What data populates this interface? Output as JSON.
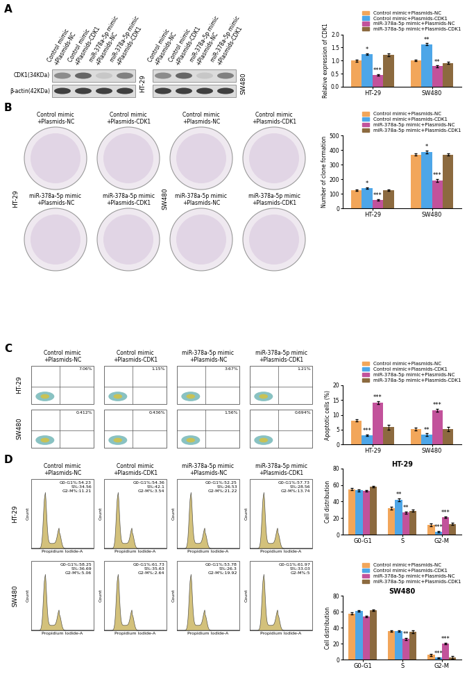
{
  "chart_data": [
    {
      "type": "bar",
      "ylabel": "Relative expression of CDK1",
      "categories": [
        "HT-29",
        "SW480"
      ],
      "series": [
        {
          "name": "Control mimic+Plasmids-NC",
          "color": "#F2A65A",
          "values": [
            1.0,
            1.0
          ],
          "errors": [
            0.04,
            0.03
          ]
        },
        {
          "name": "Control mimic+Plasmids-CDK1",
          "color": "#4DA6E8",
          "values": [
            1.25,
            1.62
          ],
          "errors": [
            0.03,
            0.04
          ],
          "annotations": [
            "*",
            "**"
          ]
        },
        {
          "name": "miR-378a-5p mimic+Plasmids-NC",
          "color": "#C2529B",
          "values": [
            0.45,
            0.78
          ],
          "errors": [
            0.03,
            0.03
          ],
          "annotations": [
            "***",
            "**"
          ]
        },
        {
          "name": "miR-378a-5p mimic+Plasmids-CDK1",
          "color": "#8C6A3F",
          "values": [
            1.22,
            0.9
          ],
          "errors": [
            0.05,
            0.04
          ]
        }
      ],
      "ylim": [
        0,
        2.0
      ],
      "yticks": [
        {
          "value": 0,
          "label": "0.0"
        },
        {
          "value": 0.5,
          "label": "0.5"
        },
        {
          "value": 1.0,
          "label": "1.0"
        },
        {
          "value": 1.5,
          "label": "1.5"
        },
        {
          "value": 2.0,
          "label": "2.0"
        }
      ],
      "legend": "above"
    },
    {
      "type": "bar",
      "ylabel": "Number of clone formation",
      "categories": [
        "HT-29",
        "SW480"
      ],
      "series": [
        {
          "name": "Control mimic+Plasmids-NC",
          "color": "#F2A65A",
          "values": [
            125,
            370
          ],
          "errors": [
            4,
            8
          ]
        },
        {
          "name": "Control mimic+Plasmids-CDK1",
          "color": "#4DA6E8",
          "values": [
            140,
            385
          ],
          "errors": [
            5,
            9
          ],
          "annotations": [
            "*",
            "*"
          ]
        },
        {
          "name": "miR-378a-5p mimic+Plasmids-NC",
          "color": "#C2529B",
          "values": [
            60,
            190
          ],
          "errors": [
            4,
            10
          ],
          "annotations": [
            "***",
            "***"
          ]
        },
        {
          "name": "miR-378a-5p mimic+Plasmids-CDK1",
          "color": "#8C6A3F",
          "values": [
            125,
            370
          ],
          "errors": [
            5,
            8
          ]
        }
      ],
      "ylim": [
        0,
        500
      ],
      "yticks": [
        0,
        100,
        200,
        300,
        400,
        500
      ],
      "legend": "above"
    },
    {
      "type": "bar",
      "ylabel": "Apoptotic cells (%)",
      "categories": [
        "HT-29",
        "SW480"
      ],
      "series": [
        {
          "name": "Control mimic+Plasmids-NC",
          "color": "#F2A65A",
          "values": [
            8.1,
            5.2
          ],
          "errors": [
            0.4,
            0.4
          ]
        },
        {
          "name": "Control mimic+Plasmids-CDK1",
          "color": "#4DA6E8",
          "values": [
            3.1,
            3.3
          ],
          "errors": [
            0.3,
            0.4
          ],
          "annotations": [
            "***",
            "**"
          ]
        },
        {
          "name": "miR-378a-5p mimic+Plasmids-NC",
          "color": "#C2529B",
          "values": [
            14.2,
            11.5
          ],
          "errors": [
            0.5,
            0.5
          ],
          "annotations": [
            "***",
            "***"
          ]
        },
        {
          "name": "miR-378a-5p mimic+Plasmids-CDK1",
          "color": "#8C6A3F",
          "values": [
            5.8,
            5.3
          ],
          "errors": [
            0.9,
            0.7
          ]
        }
      ],
      "ylim": [
        0,
        20
      ],
      "yticks": [
        0,
        5,
        10,
        15,
        20
      ],
      "legend": "above"
    },
    {
      "type": "bar",
      "title": "HT-29",
      "ylabel": "Cell distribution",
      "categories": [
        "G0-G1",
        "S",
        "G2-M"
      ],
      "series": [
        {
          "name": "Control mimic+Plasmids-NC",
          "color": "#F2A65A",
          "values": [
            55,
            32,
            12
          ],
          "errors": [
            1.5,
            2,
            1.5
          ]
        },
        {
          "name": "Control mimic+Plasmids-CDK1",
          "color": "#4DA6E8",
          "values": [
            53.5,
            42,
            3.5
          ],
          "errors": [
            1,
            1.5,
            1
          ],
          "annotations": [
            null,
            "**",
            "***"
          ]
        },
        {
          "name": "miR-378a-5p mimic+Plasmids-NC",
          "color": "#C2529B",
          "values": [
            53,
            26.5,
            21
          ],
          "errors": [
            1,
            1,
            1
          ],
          "annotations": [
            null,
            "**",
            "***"
          ]
        },
        {
          "name": "miR-378a-5p mimic+Plasmids-CDK1",
          "color": "#8C6A3F",
          "values": [
            58,
            29,
            13
          ],
          "errors": [
            1,
            1,
            1
          ]
        }
      ],
      "ylim": [
        0,
        80
      ],
      "yticks": [
        0,
        20,
        40,
        60,
        80
      ]
    },
    {
      "type": "bar",
      "title": "SW480",
      "ylabel": "Cell distribution",
      "categories": [
        "G0-G1",
        "S",
        "G2-M"
      ],
      "series": [
        {
          "name": "Control mimic+Plasmids-NC",
          "color": "#F2A65A",
          "values": [
            58,
            36,
            6
          ],
          "errors": [
            1,
            1,
            1.5
          ]
        },
        {
          "name": "Control mimic+Plasmids-CDK1",
          "color": "#4DA6E8",
          "values": [
            61,
            36,
            2.5
          ],
          "errors": [
            1,
            1,
            0.5
          ],
          "annotations": [
            null,
            null,
            "***"
          ]
        },
        {
          "name": "miR-378a-5p mimic+Plasmids-NC",
          "color": "#C2529B",
          "values": [
            54,
            26,
            20
          ],
          "errors": [
            1,
            1,
            1
          ],
          "annotations": [
            null,
            "**",
            "***"
          ]
        },
        {
          "name": "miR-378a-5p mimic+Plasmids-CDK1",
          "color": "#8C6A3F",
          "values": [
            62,
            35,
            3
          ],
          "errors": [
            1,
            1.5,
            2
          ]
        }
      ],
      "ylim": [
        0,
        80
      ],
      "yticks": [
        0,
        20,
        40,
        60,
        80
      ],
      "legend": "above"
    }
  ],
  "panel_letters": [
    "A",
    "B",
    "C",
    "D"
  ],
  "groups": [
    "Control mimic\n+Plasmids-NC",
    "Control mimic\n+Plasmids-CDK1",
    "miR-378a-5p mimic\n+Plasmids-NC",
    "miR-378a-5p mimic\n+Plasmids-CDK1"
  ],
  "cell_lines": [
    "HT-29",
    "SW480"
  ],
  "western_blot": {
    "proteins": [
      "CDK1(34KDa)",
      "β-actin(42KDa)"
    ]
  },
  "apoptosis_plots": {
    "HT-29": [
      "7.06%",
      "1.15%",
      "3.67%",
      "1.21%"
    ],
    "SW480": [
      "0.412%",
      "0.436%",
      "1.56%",
      "0.694%"
    ]
  },
  "cell_cycle_plots": {
    "xlabel": "Propidium Iodide-A",
    "ylabel": "Count",
    "HT-29": [
      [
        "G0-G1%:54.23",
        "S%:34.56",
        "G2-M%:11.21"
      ],
      [
        "G0-G1%:54.36",
        "S%:42.1",
        "G2-M%:3.54"
      ],
      [
        "G0-G1%:52.25",
        "S%:26.53",
        "G2-M%:21.22"
      ],
      [
        "G0-G1%:57.73",
        "S%:28.56",
        "G2-M%:13.74"
      ]
    ],
    "SW480": [
      [
        "G0-G1%:58.25",
        "S%:36.69",
        "G2-M%:5.06"
      ],
      [
        "G0-G1%:61.73",
        "S%:35.63",
        "G2-M%:2.64"
      ],
      [
        "G0-G1%:53.78",
        "S%:26.3",
        "G2-M%:19.92"
      ],
      [
        "G0-G1%:61.97",
        "S%:33.03",
        "G2-M%:5"
      ]
    ]
  }
}
